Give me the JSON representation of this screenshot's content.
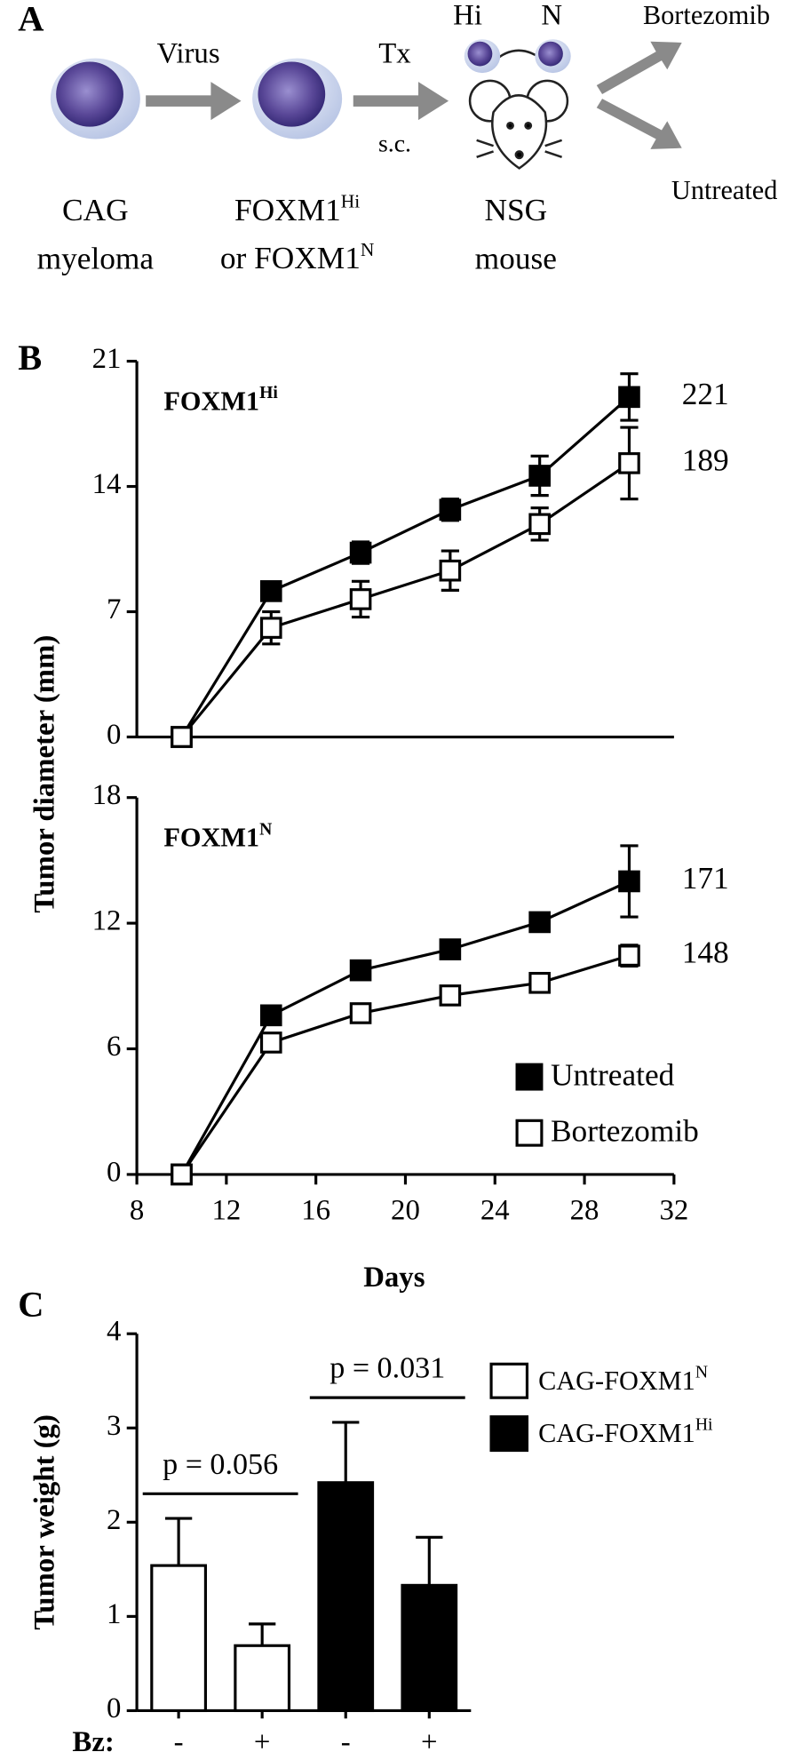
{
  "panel_a": {
    "label": "A",
    "arrow1": "Virus",
    "arrow2_top": "Tx",
    "arrow2_bottom": "s.c.",
    "mouse_left": "Hi",
    "mouse_right": "N",
    "branch_top": "Bortezomib",
    "branch_bottom": "Untreated",
    "caption1": [
      "CAG",
      "myeloma"
    ],
    "caption2": [
      [
        "FOXM1",
        "Hi"
      ],
      [
        "or FOXM1",
        "N"
      ]
    ],
    "caption3": [
      "NSG",
      "mouse"
    ]
  },
  "chart_data": [
    {
      "type": "line",
      "panel_label": "B",
      "title": "FOXM1",
      "title_sup": "Hi",
      "y_label": "Tumor diameter (mm)",
      "x": [
        10,
        14,
        18,
        22,
        26,
        30
      ],
      "xlim": [
        8,
        32
      ],
      "ylim": [
        0,
        21
      ],
      "yticks": [
        0,
        7,
        14,
        21
      ],
      "series": [
        {
          "color": "#000000",
          "fill": "#000000",
          "values": [
            0,
            8.15,
            10.3,
            12.7,
            14.6,
            19.0
          ],
          "errors": [
            0,
            0.3,
            0.6,
            0.6,
            1.1,
            1.3
          ],
          "end_label": "221"
        },
        {
          "color": "#000000",
          "fill": "#ffffff",
          "values": [
            0,
            6.1,
            7.7,
            9.3,
            11.9,
            15.3
          ],
          "errors": [
            0,
            0.9,
            1.0,
            1.1,
            0.9,
            2.0
          ],
          "end_label": "189"
        }
      ]
    },
    {
      "type": "line",
      "title": "FOXM1",
      "title_sup": "N",
      "x_label": "Days",
      "x": [
        10,
        14,
        18,
        22,
        26,
        30
      ],
      "xlim": [
        8,
        32
      ],
      "xticks": [
        8,
        12,
        16,
        20,
        24,
        28,
        32
      ],
      "ylim": [
        0,
        18
      ],
      "yticks": [
        0,
        6,
        12,
        18
      ],
      "legend": "lower right",
      "series": [
        {
          "name": "Untreated",
          "color": "#000000",
          "fill": "#000000",
          "values": [
            0,
            7.6,
            9.75,
            10.75,
            12.05,
            14.0
          ],
          "errors": [
            0,
            0.2,
            0.2,
            0.4,
            0.2,
            1.7
          ],
          "end_label": "171"
        },
        {
          "name": "Bortezomib",
          "color": "#000000",
          "fill": "#ffffff",
          "values": [
            0,
            6.3,
            7.7,
            8.55,
            9.15,
            10.45
          ],
          "errors": [
            0,
            0.3,
            0.3,
            0.3,
            0.3,
            0.5
          ],
          "end_label": "148"
        }
      ]
    },
    {
      "type": "bar",
      "panel_label": "C",
      "y_label": "Tumor weight (g)",
      "category_label": "Bz:",
      "categories": [
        "-",
        "+",
        "-",
        "+"
      ],
      "ylim": [
        0,
        4
      ],
      "yticks": [
        0,
        1,
        2,
        3,
        4
      ],
      "legend": "right",
      "annotations": [
        "p = 0.056",
        "p = 0.031"
      ],
      "series": [
        {
          "name": "CAG-FOXM1",
          "name_sup": "N",
          "color": "#ffffff",
          "values": [
            1.54,
            0.69,
            null,
            null
          ],
          "errors": [
            0.5,
            0.23,
            null,
            null
          ]
        },
        {
          "name": "CAG-FOXM1",
          "name_sup": "Hi",
          "color": "#000000",
          "values": [
            null,
            null,
            2.42,
            1.33
          ],
          "errors": [
            null,
            null,
            0.64,
            0.51
          ]
        }
      ]
    }
  ]
}
